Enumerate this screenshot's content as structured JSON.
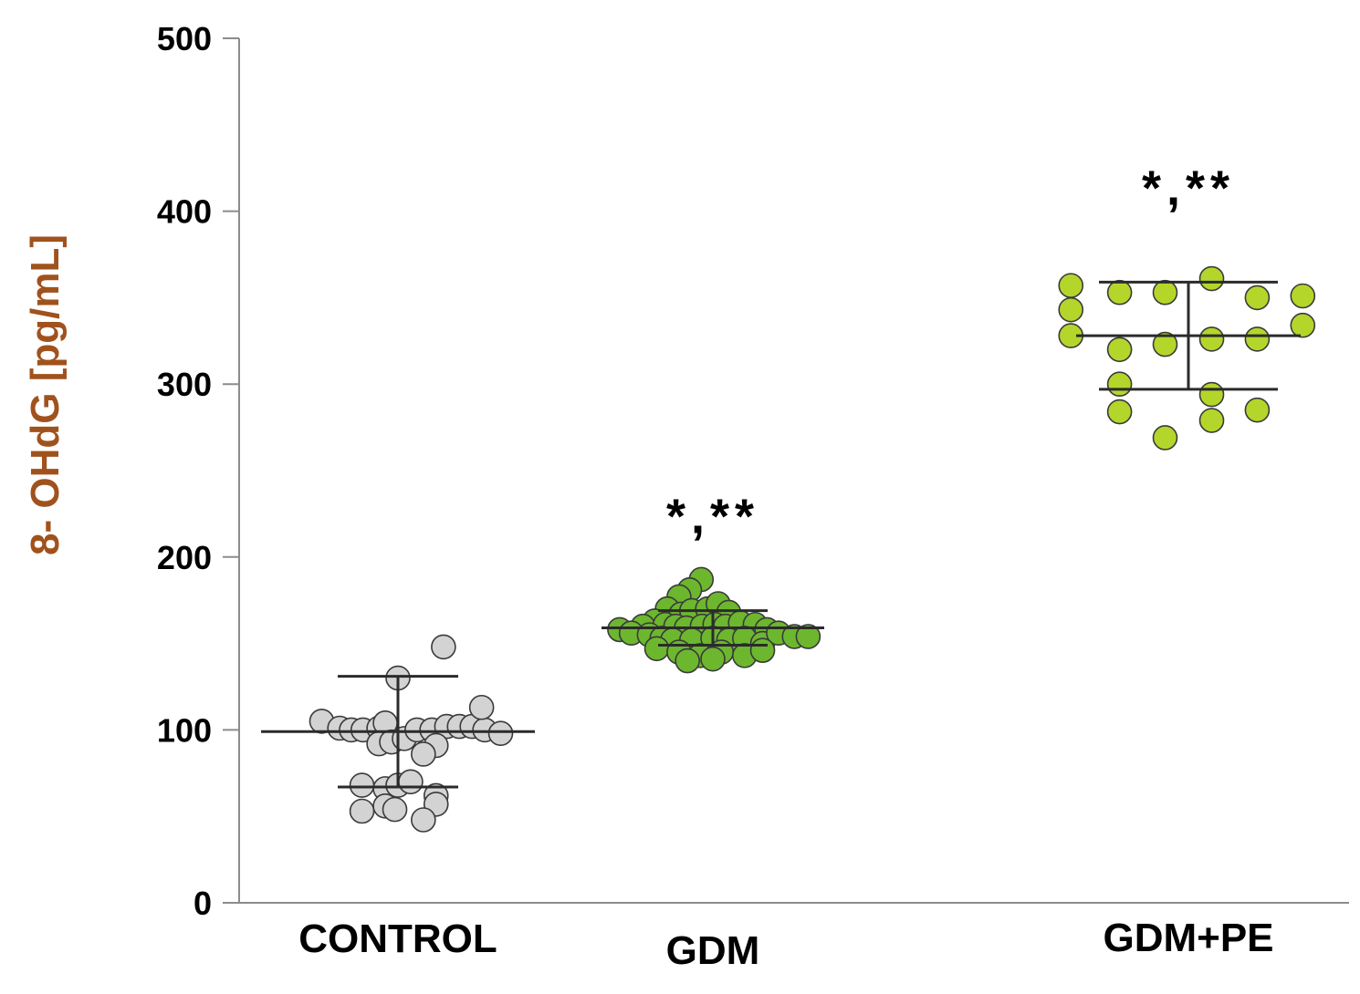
{
  "chart_data": {
    "type": "scatter",
    "title": "",
    "xlabel": "",
    "ylabel": "8- OHdG [pg/mL]",
    "ylim": [
      0,
      500
    ],
    "yticks": [
      0,
      100,
      200,
      300,
      400,
      500
    ],
    "grid": false,
    "categories": [
      "CONTROL",
      "GDM",
      "GDM+PE"
    ],
    "colors": {
      "ylabel": "#a0521d",
      "axis": "#8c8c8c",
      "stats": "#2b2b2b",
      "point_stroke": "#3a3a3a"
    },
    "groups": [
      {
        "category": "CONTROL",
        "color": "#d3d3d3",
        "mean": 99,
        "sd_low": 67,
        "sd_high": 131,
        "annotation": "",
        "points": [
          {
            "j": 0.43,
            "y": 148
          },
          {
            "j": 0.0,
            "y": 130
          },
          {
            "j": -0.72,
            "y": 105
          },
          {
            "j": -0.55,
            "y": 101
          },
          {
            "j": -0.44,
            "y": 100
          },
          {
            "j": -0.33,
            "y": 100
          },
          {
            "j": -0.18,
            "y": 101
          },
          {
            "j": -0.12,
            "y": 104
          },
          {
            "j": -0.18,
            "y": 92
          },
          {
            "j": -0.06,
            "y": 93
          },
          {
            "j": 0.06,
            "y": 95
          },
          {
            "j": 0.18,
            "y": 100
          },
          {
            "j": 0.32,
            "y": 100
          },
          {
            "j": 0.46,
            "y": 102
          },
          {
            "j": 0.58,
            "y": 102
          },
          {
            "j": 0.7,
            "y": 102
          },
          {
            "j": 0.82,
            "y": 100
          },
          {
            "j": 0.97,
            "y": 98
          },
          {
            "j": 0.79,
            "y": 113
          },
          {
            "j": 0.36,
            "y": 91
          },
          {
            "j": 0.24,
            "y": 86
          },
          {
            "j": -0.34,
            "y": 68
          },
          {
            "j": -0.12,
            "y": 66
          },
          {
            "j": 0.0,
            "y": 68
          },
          {
            "j": 0.12,
            "y": 70
          },
          {
            "j": 0.36,
            "y": 62
          },
          {
            "j": -0.34,
            "y": 53
          },
          {
            "j": -0.12,
            "y": 56
          },
          {
            "j": -0.03,
            "y": 54
          },
          {
            "j": 0.36,
            "y": 57
          },
          {
            "j": 0.24,
            "y": 48
          }
        ]
      },
      {
        "category": "GDM",
        "color": "#6cb72e",
        "mean": 159,
        "sd_low": 149,
        "sd_high": 169,
        "annotation": "*,**",
        "points": [
          {
            "j": -0.11,
            "y": 187
          },
          {
            "j": -0.22,
            "y": 181
          },
          {
            "j": -0.32,
            "y": 177
          },
          {
            "j": -0.43,
            "y": 170
          },
          {
            "j": -0.3,
            "y": 167
          },
          {
            "j": -0.2,
            "y": 169
          },
          {
            "j": -0.05,
            "y": 170
          },
          {
            "j": 0.05,
            "y": 173
          },
          {
            "j": 0.15,
            "y": 168
          },
          {
            "j": -0.55,
            "y": 163
          },
          {
            "j": -0.66,
            "y": 160
          },
          {
            "j": -0.45,
            "y": 161
          },
          {
            "j": -0.35,
            "y": 160
          },
          {
            "j": -0.25,
            "y": 159
          },
          {
            "j": -0.1,
            "y": 160
          },
          {
            "j": 0.02,
            "y": 161
          },
          {
            "j": 0.12,
            "y": 160
          },
          {
            "j": 0.26,
            "y": 162
          },
          {
            "j": 0.4,
            "y": 161
          },
          {
            "j": 0.51,
            "y": 158
          },
          {
            "j": -0.88,
            "y": 158
          },
          {
            "j": -0.77,
            "y": 156
          },
          {
            "j": -0.6,
            "y": 155
          },
          {
            "j": -0.48,
            "y": 153
          },
          {
            "j": -0.38,
            "y": 152
          },
          {
            "j": -0.2,
            "y": 152
          },
          {
            "j": 0.0,
            "y": 153
          },
          {
            "j": 0.15,
            "y": 152
          },
          {
            "j": 0.3,
            "y": 153
          },
          {
            "j": 0.47,
            "y": 150
          },
          {
            "j": 0.62,
            "y": 156
          },
          {
            "j": 0.77,
            "y": 154
          },
          {
            "j": 0.9,
            "y": 154
          },
          {
            "j": -0.53,
            "y": 147
          },
          {
            "j": -0.32,
            "y": 145
          },
          {
            "j": -0.12,
            "y": 143
          },
          {
            "j": 0.08,
            "y": 145
          },
          {
            "j": 0.3,
            "y": 143
          },
          {
            "j": 0.47,
            "y": 146
          },
          {
            "j": -0.24,
            "y": 140
          },
          {
            "j": 0.0,
            "y": 141
          }
        ]
      },
      {
        "category": "GDM+PE",
        "color": "#b4d62b",
        "mean": 328,
        "sd_low": 297,
        "sd_high": 359,
        "annotation": "*,**",
        "points": [
          {
            "j": 0.22,
            "y": 361
          },
          {
            "j": -1.11,
            "y": 357
          },
          {
            "j": -0.65,
            "y": 353
          },
          {
            "j": -0.22,
            "y": 353
          },
          {
            "j": 0.65,
            "y": 350
          },
          {
            "j": 1.08,
            "y": 351
          },
          {
            "j": -1.11,
            "y": 343
          },
          {
            "j": 1.08,
            "y": 334
          },
          {
            "j": -1.11,
            "y": 328
          },
          {
            "j": 0.22,
            "y": 326
          },
          {
            "j": 0.65,
            "y": 326
          },
          {
            "j": -0.22,
            "y": 323
          },
          {
            "j": -0.65,
            "y": 320
          },
          {
            "j": -0.65,
            "y": 300
          },
          {
            "j": 0.22,
            "y": 294
          },
          {
            "j": -0.65,
            "y": 284
          },
          {
            "j": 0.65,
            "y": 285
          },
          {
            "j": 0.22,
            "y": 279
          },
          {
            "j": -0.22,
            "y": 269
          }
        ]
      }
    ]
  }
}
